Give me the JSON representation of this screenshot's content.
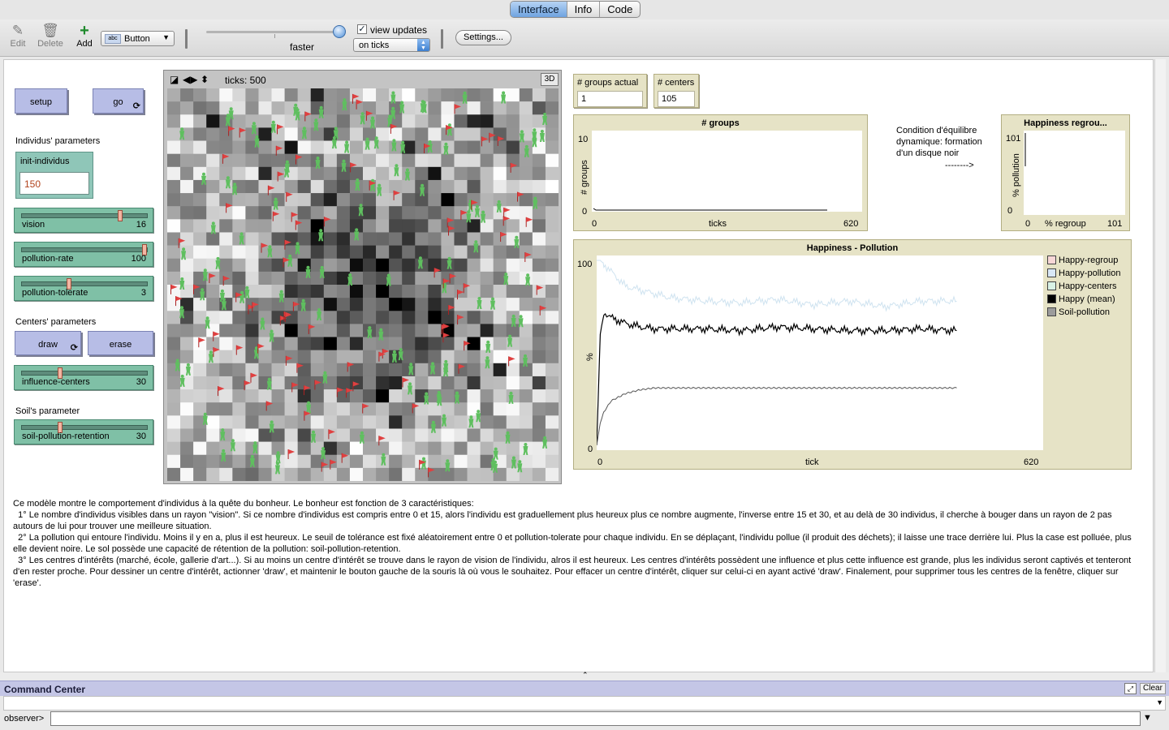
{
  "tabs": [
    "Interface",
    "Info",
    "Code"
  ],
  "toolbar": {
    "edit_label": "Edit",
    "delete_label": "Delete",
    "add_label": "Add",
    "widget_type": "Button",
    "widget_chip": "abc",
    "speed_label": "faster",
    "view_updates_label": "view updates",
    "view_updates_checked": "✓",
    "update_mode": "on ticks",
    "settings_label": "Settings..."
  },
  "buttons": {
    "setup": "setup",
    "go": "go",
    "draw": "draw",
    "erase": "erase",
    "forever_glyph": "⟳"
  },
  "sections": {
    "individus": "Individus' parameters",
    "centers": "Centers' parameters",
    "soil": "Soil's parameter"
  },
  "inputs": {
    "init_individus": {
      "label": "init-individus",
      "value": "150"
    }
  },
  "sliders": [
    {
      "name": "vision",
      "value": "16",
      "fraction": 0.8
    },
    {
      "name": "pollution-rate",
      "value": "100",
      "fraction": 1.0
    },
    {
      "name": "pollution-tolerate",
      "value": "3",
      "fraction": 0.37
    },
    {
      "name": "influence-centers",
      "value": "30",
      "fraction": 0.3
    },
    {
      "name": "soil-pollution-retention",
      "value": "30",
      "fraction": 0.3
    }
  ],
  "world": {
    "ticks": "ticks: 500",
    "btn3d": "3D"
  },
  "monitors": {
    "groups_actual": {
      "label": "# groups actual",
      "value": "1"
    },
    "centers": {
      "label": "# centers",
      "value": "105"
    }
  },
  "plot_groups": {
    "title": "# groups",
    "ylabel": "# groups",
    "xlabel": "ticks",
    "ymax": "10",
    "ymin": "0",
    "xmin": "0",
    "xmax": "620"
  },
  "note": {
    "text": "Condition d'équilibre dynamique: formation d'un disque noir",
    "arrow": "-------->"
  },
  "plot_happiness_small": {
    "title": "Happiness   regrou...",
    "ylabel": "% pollution",
    "xlabel": "% regroup",
    "ymax": "101",
    "ymin": "0",
    "xmin": "0",
    "xmax": "101"
  },
  "plot_main": {
    "title": "Happiness - Pollution",
    "ylabel": "%",
    "xlabel": "tick",
    "ymax": "100",
    "ymin": "0",
    "xmin": "0",
    "xmax": "620"
  },
  "legend": [
    {
      "name": "Happy-regroup",
      "color": "#f7d7d7"
    },
    {
      "name": "Happy-pollution",
      "color": "#d9e8f7"
    },
    {
      "name": "Happy-centers",
      "color": "#d9f2e6"
    },
    {
      "name": "Happy (mean)",
      "color": "#000000"
    },
    {
      "name": "Soil-pollution",
      "color": "#9c9c9c"
    }
  ],
  "info": [
    "Ce modèle montre le comportement d'individus à la quête du bonheur. Le bonheur est fonction de 3 caractéristiques:",
    "  1° Le nombre d'individus visibles dans un rayon \"vision\". Si ce nombre d'individus est compris entre 0 et 15, alors l'individu est graduellement plus heureux plus ce nombre augmente, l'inverse entre 15 et 30, et au delà de 30 individus, il cherche à bouger dans un rayon de 2 pas autours de lui pour trouver une meilleure situation.",
    "  2° La pollution qui entoure l'individu. Moins il y en a, plus il est heureux. Le seuil de tolérance est fixé aléatoirement entre 0 et pollution-tolerate pour chaque individu. En se déplaçant, l'individu pollue (il produit des déchets); il laisse une trace derrière lui. Plus la case est polluée, plus elle devient noire. Le sol possède une capacité de rétention de la pollution: soil-pollution-retention.",
    "  3° Les centres d'intérêts (marché, école, gallerie d'art...). Si au moins un centre d'intérêt se trouve dans le rayon de vision de l'individu, alros il est heureux. Les centres d'intérêts possèdent une influence et plus cette influence est grande, plus les individus seront captivés et tenteront d'en rester proche. Pour dessiner un centre d'intérêt, actionner 'draw', et maintenir le bouton gauche de la souris là où vous le souhaitez. Pour effacer un centre d'intérêt, cliquer sur celui-ci en ayant activé 'draw'. Finalement, pour supprimer tous les centres de la fenêtre, cliquer sur 'erase'."
  ],
  "command_center": {
    "title": "Command Center",
    "clear_label": "Clear",
    "observer_label": "observer>",
    "input_value": ""
  },
  "chart_data": {
    "type": "line",
    "title": "Happiness - Pollution",
    "xlabel": "tick",
    "ylabel": "%",
    "xlim": [
      0,
      620
    ],
    "ylim": [
      0,
      100
    ],
    "x": [
      0,
      5,
      10,
      20,
      40,
      60,
      80,
      100,
      150,
      200,
      250,
      300,
      350,
      400,
      450,
      500
    ],
    "series": [
      {
        "name": "Happy-pollution",
        "color": "#cfe3f0",
        "values": [
          100,
          100,
          98,
          94,
          86,
          84,
          82,
          80,
          78,
          77,
          79,
          76,
          78,
          75,
          78,
          78
        ]
      },
      {
        "name": "Happy (mean)",
        "color": "#000000",
        "values": [
          0,
          60,
          72,
          69,
          66,
          64,
          63,
          63,
          63,
          62,
          64,
          63,
          62,
          62,
          63,
          62
        ]
      },
      {
        "name": "Soil-pollution",
        "color": "#555555",
        "values": [
          0,
          12,
          18,
          24,
          28,
          30,
          31,
          31,
          31,
          31,
          31,
          31,
          31,
          31,
          31,
          31
        ]
      }
    ]
  }
}
